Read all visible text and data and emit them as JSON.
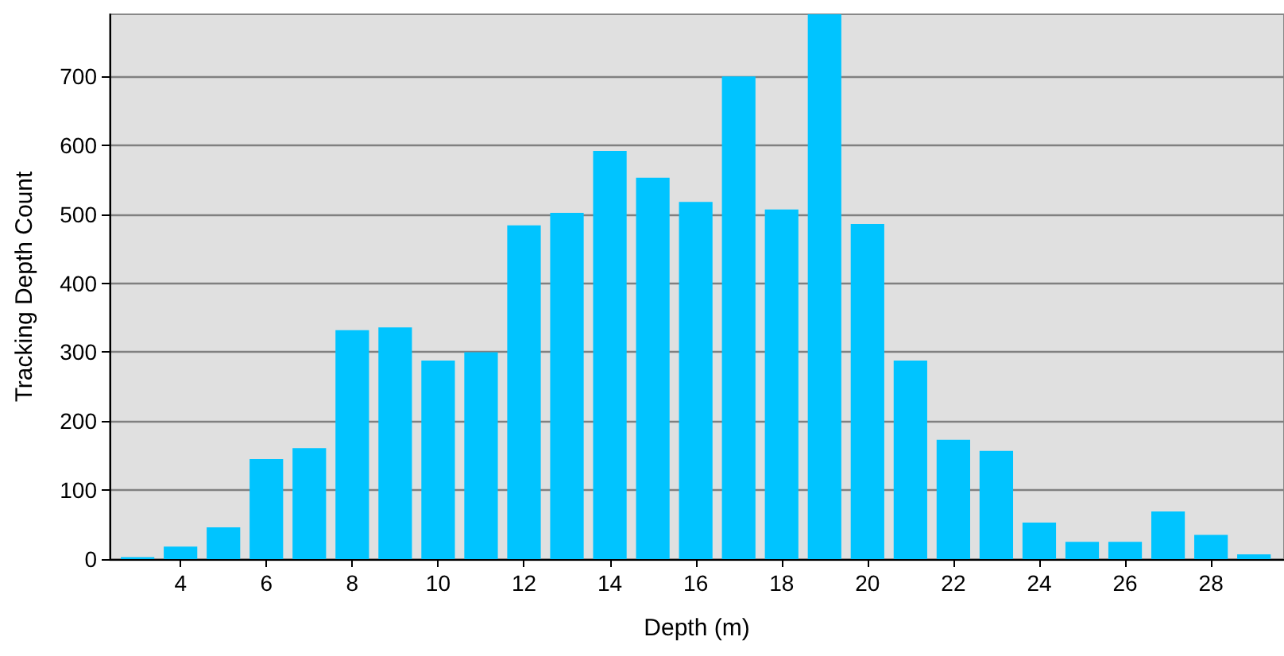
{
  "chart_data": {
    "type": "bar",
    "xlabel": "Depth (m)",
    "ylabel": "Tracking Depth Count",
    "x": [
      3,
      4,
      5,
      6,
      7,
      8,
      9,
      10,
      11,
      12,
      13,
      14,
      15,
      16,
      17,
      18,
      19,
      20,
      21,
      22,
      23,
      24,
      25,
      26,
      27,
      28,
      29
    ],
    "values": [
      3,
      18,
      46,
      145,
      161,
      332,
      336,
      288,
      300,
      484,
      502,
      592,
      553,
      518,
      700,
      507,
      790,
      486,
      288,
      173,
      157,
      53,
      25,
      25,
      69,
      35,
      7
    ],
    "color": "#00c4ff",
    "xlim": [
      2.35,
      29.7
    ],
    "xticks": [
      4,
      6,
      8,
      10,
      12,
      14,
      16,
      18,
      20,
      22,
      24,
      26,
      28
    ],
    "ylim": [
      0,
      790
    ],
    "yticks": [
      0,
      100,
      200,
      300,
      400,
      500,
      600,
      700
    ],
    "grid": "y"
  }
}
